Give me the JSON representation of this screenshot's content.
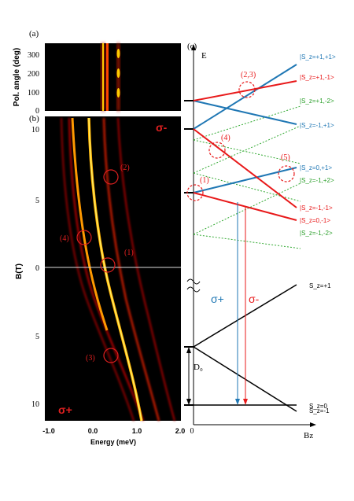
{
  "panel_a": {
    "tag": "(a)",
    "ylabel": "Pol. angle (deg)",
    "yticks": [
      "0",
      "100",
      "200",
      "300"
    ]
  },
  "panel_b": {
    "tag": "(b)",
    "ylabel": "B(T)",
    "xlabel": "Energy (meV)",
    "xticks": [
      "-1.0",
      "0.0",
      "1.0",
      "2.0"
    ],
    "yticks_top": [
      "10",
      "5",
      "0"
    ],
    "yticks_bottom": [
      "5",
      "10"
    ],
    "sigma_minus": "σ-",
    "sigma_plus": "σ+",
    "markers": [
      "(1)",
      "(2)",
      "(3)",
      "(4)"
    ]
  },
  "panel_c": {
    "tag": "(c)",
    "yaxis": "E",
    "xaxis": "Bz",
    "zero": "0",
    "d0": "D₀",
    "sigma_plus": "σ+",
    "sigma_minus": "σ-",
    "crossings": [
      "(1)",
      "(2,3)",
      "(4)",
      "(5)"
    ],
    "states": [
      {
        "text": "|S_z=+1,+1>",
        "color": "#1f77b4"
      },
      {
        "text": "|S_z=+1,-1>",
        "color": "#e8191a"
      },
      {
        "text": "|S_z=+1,-2>",
        "color": "#2ca02c"
      },
      {
        "text": "|S_z=-1,+1>",
        "color": "#1f77b4"
      },
      {
        "text": "|S_z=0,+1>",
        "color": "#1f77b4"
      },
      {
        "text": "|S_z=-1,+2>",
        "color": "#2ca02c"
      },
      {
        "text": "|S_z=-1,-1>",
        "color": "#e8191a"
      },
      {
        "text": "|S_z=0,-1>",
        "color": "#e8191a"
      },
      {
        "text": "|S_z=-1,-2>",
        "color": "#2ca02c"
      }
    ],
    "lower_states": [
      "S_z=+1",
      "S_z=-1",
      "S_z=0"
    ]
  }
}
